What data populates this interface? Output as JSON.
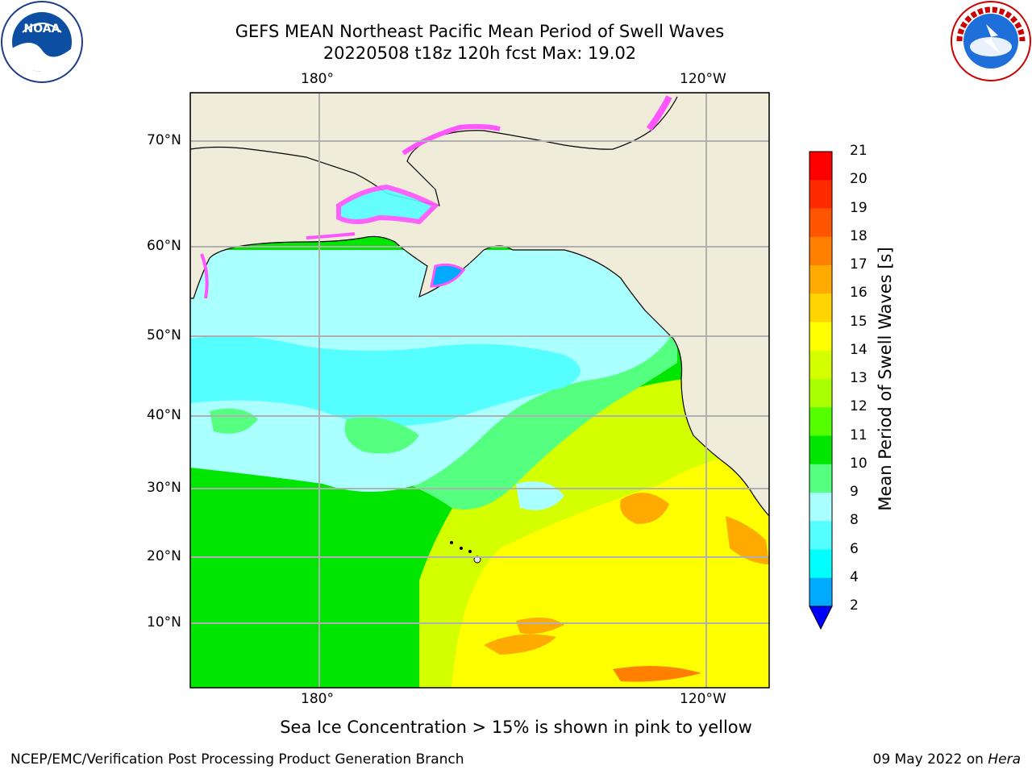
{
  "title": {
    "line1": "GEFS MEAN Northeast Pacific Mean Period of Swell Waves",
    "line2": "20220508 t18z 120h fcst   Max: 19.02"
  },
  "logos": {
    "left": "noaa-logo",
    "left_text": "NOAA",
    "right": "national-weather-service-logo",
    "right_text": "NATIONAL WEATHER SERVICE"
  },
  "map": {
    "lon_labels": [
      "180°",
      "120°W"
    ],
    "lat_labels": [
      "70°N",
      "60°N",
      "50°N",
      "40°N",
      "30°N",
      "20°N",
      "10°N"
    ]
  },
  "colorbar": {
    "title": "Mean Period of Swell Waves [s]",
    "ticks": [
      "21",
      "20",
      "19",
      "18",
      "17",
      "16",
      "15",
      "14",
      "13",
      "12",
      "11",
      "10",
      "9",
      "8",
      "6",
      "4",
      "2"
    ],
    "colors": [
      "#ff0000",
      "#ff2a00",
      "#ff5500",
      "#ff7f00",
      "#ffaa00",
      "#ffd400",
      "#ffff00",
      "#d4ff00",
      "#aaff00",
      "#55ff00",
      "#00e600",
      "#55ff80",
      "#aaffff",
      "#55ffff",
      "#00ffff",
      "#00aaff",
      "#0055ff"
    ],
    "extend_color": "#0000ff"
  },
  "note": "Sea Ice Concentration > 15% is shown in pink to yellow",
  "footer": {
    "left": "NCEP/EMC/Verification Post Processing Product Generation Branch",
    "right_date": "09 May 2022 on ",
    "right_machine": "Hera"
  }
}
